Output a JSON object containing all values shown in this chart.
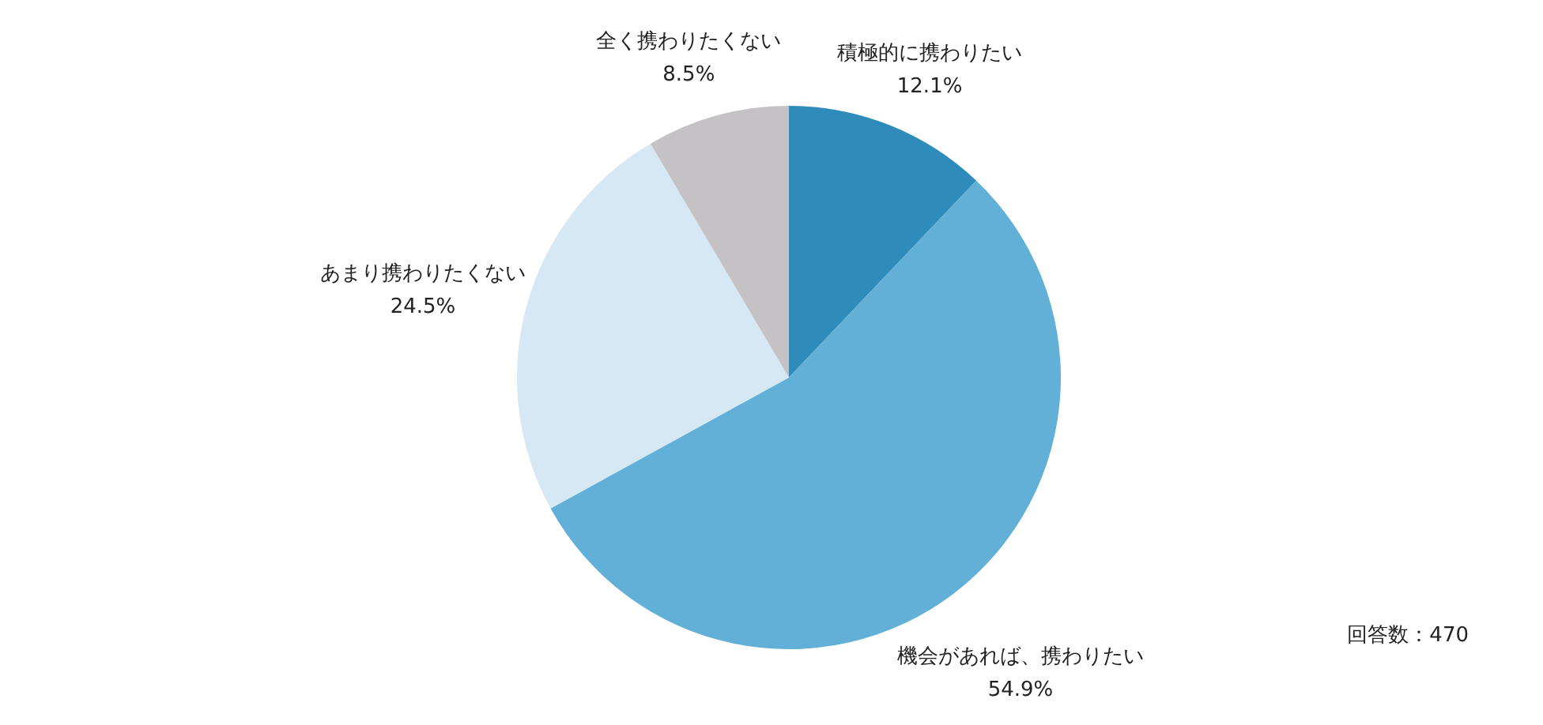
{
  "chart_data": {
    "type": "pie",
    "categories": [
      "積極的に携わりたい",
      "機会があれば、携わりたい",
      "あまり携わりたくない",
      "全く携わりたくない"
    ],
    "values": [
      12.1,
      54.9,
      24.5,
      8.5
    ],
    "value_labels": [
      "12.1%",
      "54.9%",
      "24.5%",
      "8.5%"
    ],
    "colors": [
      "#2e8bba",
      "#62afd8",
      "#d6e8f3",
      "#c4c2c4"
    ],
    "annotations": [
      "回答数：470"
    ]
  }
}
